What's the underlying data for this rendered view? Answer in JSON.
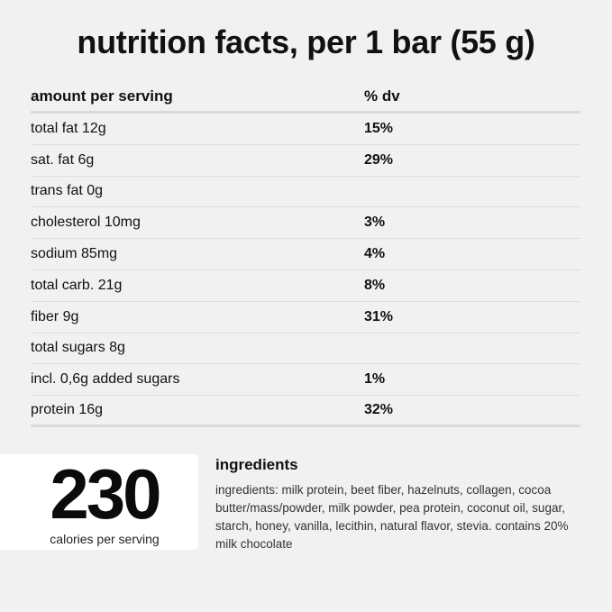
{
  "title": "nutrition facts, per 1 bar (55 g)",
  "table": {
    "headers": {
      "amount": "amount per serving",
      "dv": "% dv"
    },
    "rows": [
      {
        "label": "total fat 12g",
        "dv": "15%"
      },
      {
        "label": "sat. fat 6g",
        "dv": "29%"
      },
      {
        "label": "trans fat 0g",
        "dv": ""
      },
      {
        "label": "cholesterol 10mg",
        "dv": "3%"
      },
      {
        "label": "sodium 85mg",
        "dv": "4%"
      },
      {
        "label": "total carb. 21g",
        "dv": "8%"
      },
      {
        "label": "fiber 9g",
        "dv": "31%"
      },
      {
        "label": "total sugars 8g",
        "dv": ""
      },
      {
        "label": "incl. 0,6g added sugars",
        "dv": "1%"
      },
      {
        "label": "protein 16g",
        "dv": "32%"
      }
    ]
  },
  "calories": {
    "value": "230",
    "label": "calories per serving"
  },
  "ingredients": {
    "title": "ingredients",
    "text": "ingredients: milk protein, beet fiber, hazelnuts, collagen, cocoa butter/mass/powder, milk powder, pea protein, coconut oil, sugar, starch, honey, vanilla, lecithin, natural flavor, stevia. contains 20% milk chocolate"
  }
}
